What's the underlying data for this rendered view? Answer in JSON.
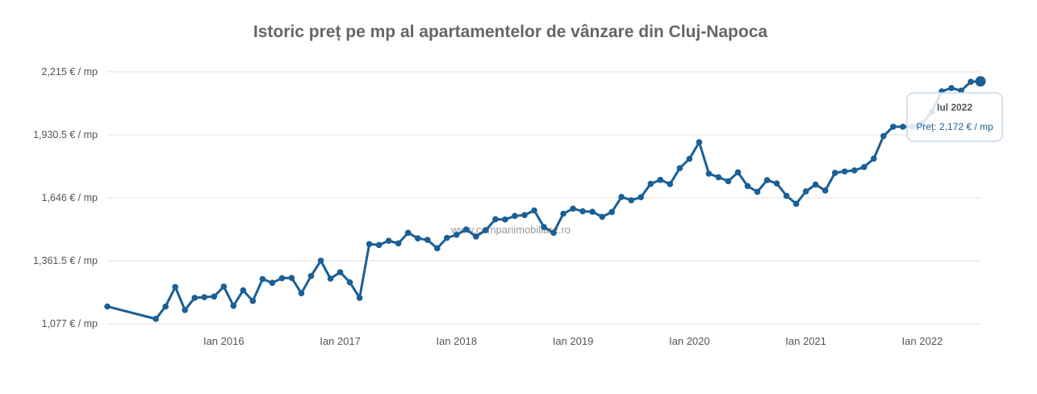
{
  "chart_data": {
    "type": "line",
    "title": "Istoric preț pe mp al apartamentelor de vânzare din Cluj-Napoca",
    "xlabel": "",
    "ylabel": "",
    "y_tick_labels": [
      "2,215 € / mp",
      "1,930.5 € / mp",
      "1,646 € / mp",
      "1,361.5 € / mp",
      "1,077 € / mp"
    ],
    "y_ticks": [
      2215,
      1930.5,
      1646,
      1361.5,
      1077
    ],
    "ylim": [
      1077,
      2215
    ],
    "x_tick_labels": [
      "Ian 2016",
      "Ian 2017",
      "Ian 2018",
      "Ian 2019",
      "Ian 2020",
      "Ian 2021",
      "Ian 2022"
    ],
    "x_tick_dates": [
      "2016-01",
      "2017-01",
      "2018-01",
      "2019-01",
      "2020-01",
      "2021-01",
      "2022-01"
    ],
    "grid": true,
    "watermark": "www.compariimobiliare.ro",
    "series": [
      {
        "color": "#1a5f96",
        "x": [
          "2015-01",
          "2015-06",
          "2015-07",
          "2015-08",
          "2015-09",
          "2015-10",
          "2015-11",
          "2015-12",
          "2016-01",
          "2016-02",
          "2016-03",
          "2016-04",
          "2016-05",
          "2016-06",
          "2016-07",
          "2016-08",
          "2016-09",
          "2016-10",
          "2016-11",
          "2016-12",
          "2017-01",
          "2017-02",
          "2017-03",
          "2017-04",
          "2017-05",
          "2017-06",
          "2017-07",
          "2017-08",
          "2017-09",
          "2017-10",
          "2017-11",
          "2017-12",
          "2018-01",
          "2018-02",
          "2018-03",
          "2018-04",
          "2018-05",
          "2018-06",
          "2018-07",
          "2018-08",
          "2018-09",
          "2018-10",
          "2018-11",
          "2018-12",
          "2019-01",
          "2019-02",
          "2019-03",
          "2019-04",
          "2019-05",
          "2019-06",
          "2019-07",
          "2019-08",
          "2019-09",
          "2019-10",
          "2019-11",
          "2019-12",
          "2020-01",
          "2020-02",
          "2020-03",
          "2020-04",
          "2020-05",
          "2020-06",
          "2020-07",
          "2020-08",
          "2020-09",
          "2020-10",
          "2020-11",
          "2020-12",
          "2021-01",
          "2021-02",
          "2021-03",
          "2021-04",
          "2021-05",
          "2021-06",
          "2021-07",
          "2021-08",
          "2021-09",
          "2021-10",
          "2021-11",
          "2021-12",
          "2022-01",
          "2022-02",
          "2022-03",
          "2022-04",
          "2022-05",
          "2022-06",
          "2022-07"
        ],
        "y": [
          1155,
          1099,
          1155,
          1243,
          1139,
          1194,
          1197,
          1200,
          1245,
          1158,
          1228,
          1180,
          1279,
          1262,
          1283,
          1284,
          1215,
          1293,
          1362,
          1281,
          1310,
          1264,
          1194,
          1437,
          1433,
          1452,
          1440,
          1488,
          1463,
          1456,
          1418,
          1465,
          1479,
          1503,
          1471,
          1500,
          1549,
          1548,
          1564,
          1568,
          1589,
          1514,
          1488,
          1574,
          1597,
          1585,
          1583,
          1560,
          1582,
          1650,
          1635,
          1649,
          1709,
          1727,
          1708,
          1780,
          1822,
          1897,
          1755,
          1739,
          1721,
          1761,
          1699,
          1673,
          1726,
          1711,
          1655,
          1619,
          1675,
          1706,
          1679,
          1759,
          1765,
          1770,
          1785,
          1823,
          1925,
          1967,
          1967,
          1967,
          1982,
          2035,
          2127,
          2142,
          2130,
          2170,
          2172
        ]
      }
    ],
    "tooltip": {
      "date_label": "Iul 2022",
      "value_label": "Preț: 2,172 € / mp"
    }
  }
}
